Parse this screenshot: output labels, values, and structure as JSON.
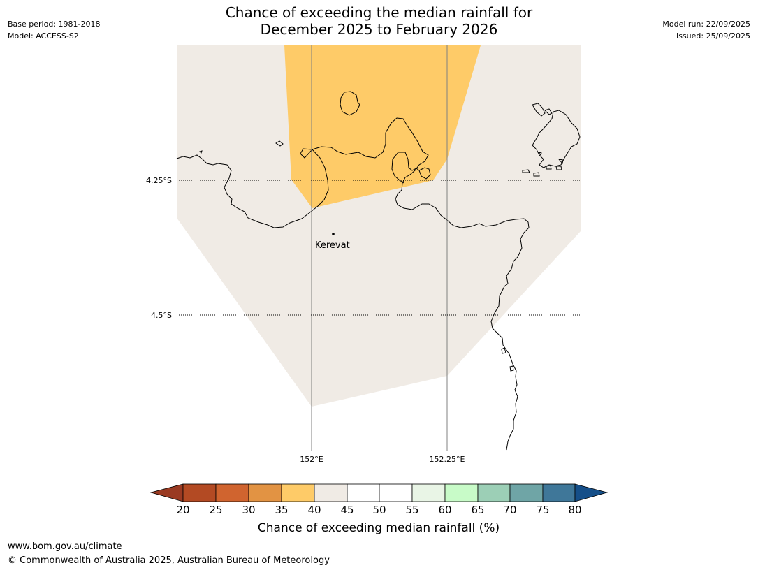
{
  "header": {
    "title_line1": "Chance of exceeding the median rainfall for",
    "title_line2": "December 2025 to February 2026",
    "base_period": "Base period: 1981-2018",
    "model": "Model: ACCESS-S2",
    "model_run": "Model run: 22/09/2025",
    "issued": "Issued: 25/09/2025"
  },
  "map": {
    "lat_labels": [
      "4.25°S",
      "4.5°S"
    ],
    "lon_labels": [
      "152°E",
      "152.25°E"
    ],
    "place_label": "Kerevat",
    "colors": {
      "band_35_40": "#fecb68",
      "band_40_45": "#f0ebe5",
      "coastline": "#000000"
    }
  },
  "legend": {
    "title": "Chance of exceeding median rainfall (%)",
    "ticks": [
      "20",
      "25",
      "30",
      "35",
      "40",
      "45",
      "50",
      "55",
      "60",
      "65",
      "70",
      "75",
      "80"
    ],
    "colors": {
      "below_20": "#9a3a22",
      "c20_25": "#b34a23",
      "c25_30": "#d0642f",
      "c30_35": "#e29343",
      "c35_40": "#fecb68",
      "c40_45": "#f0ebe5",
      "c45_50": "#ffffff",
      "c50_55": "#ffffff",
      "c55_60": "#e9f5e6",
      "c60_65": "#c8fbc8",
      "c65_70": "#9ccfb6",
      "c70_75": "#6fa5a6",
      "c75_80": "#3f7799",
      "above_80": "#154f89"
    }
  },
  "footer": {
    "url": "www.bom.gov.au/climate",
    "copyright": "© Commonwealth of Australia 2025, Australian Bureau of Meteorology"
  }
}
